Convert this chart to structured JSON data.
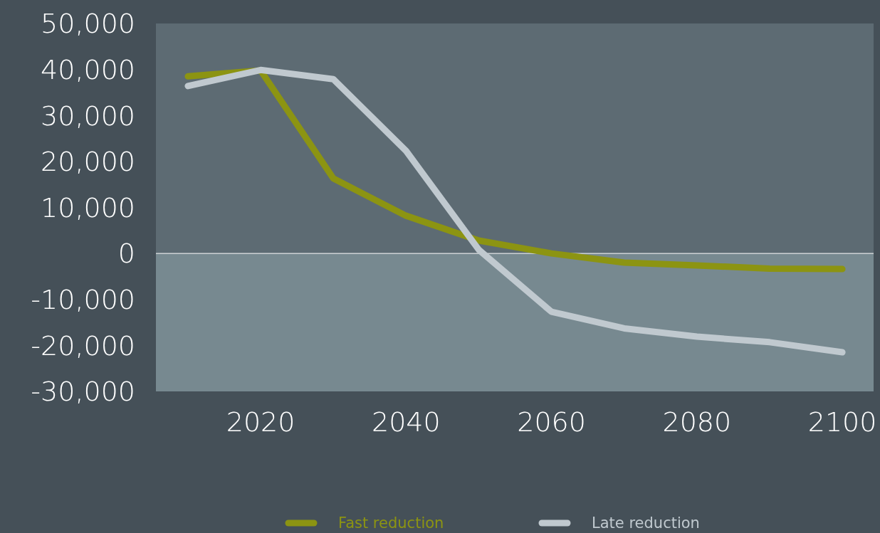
{
  "chart_data": {
    "type": "line",
    "x": [
      2010,
      2020,
      2030,
      2040,
      2050,
      2060,
      2070,
      2080,
      2090,
      2100
    ],
    "series": [
      {
        "name": "Fast reduction",
        "color": "#8c9412",
        "values": [
          38500,
          39800,
          16300,
          8200,
          2800,
          0,
          -2000,
          -2600,
          -3300,
          -3400
        ]
      },
      {
        "name": "Late reduction",
        "color": "#c0c9cf",
        "values": [
          36400,
          39900,
          37900,
          22300,
          800,
          -12700,
          -16300,
          -18100,
          -19300,
          -21500
        ]
      }
    ],
    "xlim": [
      2005.6,
      2104.3
    ],
    "xticks": [
      2020,
      2040,
      2060,
      2080,
      2100
    ],
    "ylim": [
      -30000,
      50000
    ],
    "yticks": [
      {
        "value": -30000,
        "label": "-30,000"
      },
      {
        "value": -20000,
        "label": "-20,000"
      },
      {
        "value": -10000,
        "label": "-10,000"
      },
      0,
      {
        "value": 10000,
        "label": "10,000"
      },
      {
        "value": 20000,
        "label": "20,000"
      },
      {
        "value": 30000,
        "label": "30,000"
      },
      {
        "value": 40000,
        "label": "40,000"
      },
      {
        "value": 50000,
        "label": "50,000"
      }
    ],
    "bands": [
      {
        "axis": "y",
        "from": 0,
        "to": 50000,
        "color": "#5d6b73"
      },
      {
        "axis": "y",
        "from": -30000,
        "to": 0,
        "color": "#778990"
      }
    ],
    "ref_lines": [
      {
        "axis": "y",
        "value": 0,
        "color": "#ffffff"
      }
    ],
    "grid": false,
    "legend": "bottom",
    "marker": "none",
    "line_style": "solid"
  }
}
